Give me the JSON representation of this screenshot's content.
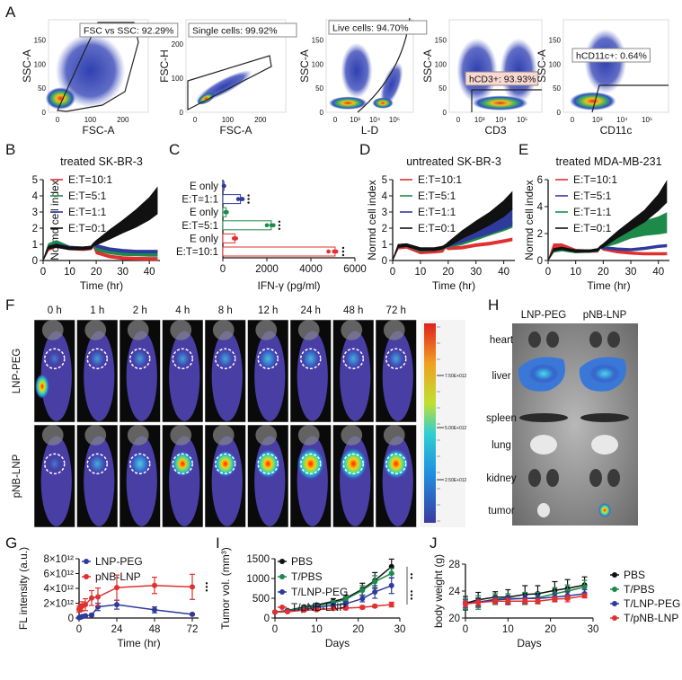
{
  "panel_labels": {
    "A": "A",
    "B": "B",
    "C": "C",
    "D": "D",
    "E": "E",
    "F": "F",
    "G": "G",
    "H": "H",
    "I": "I",
    "J": "J"
  },
  "colors": {
    "red": "#e03030",
    "green": "#1e8a4a",
    "blue": "#2e3a9c",
    "black": "#111111"
  },
  "flow_plots": [
    {
      "gate_label": "FSC vs SSC: 92.29%",
      "xlabel": "FSC-A",
      "ylabel": "SSC-A",
      "xticks": [
        "0",
        "100",
        "200"
      ],
      "yticks": [
        "0",
        "50",
        "100",
        "150"
      ]
    },
    {
      "gate_label": "Single cells: 99.92%",
      "xlabel": "FSC-A",
      "ylabel": "FSC-H",
      "xticks": [
        "0",
        "100",
        "200"
      ],
      "yticks": [
        "0",
        "100",
        "200"
      ]
    },
    {
      "gate_label": "Live cells: 94.70%",
      "xlabel": "L-D",
      "ylabel": "SSC-A",
      "xticks": [
        "0",
        "10³",
        "10⁴",
        "10⁵"
      ],
      "yticks": [
        "0",
        "50",
        "100",
        "150"
      ]
    },
    {
      "gate_label": "hCD3+: 93.93%",
      "xlabel": "CD3",
      "ylabel": "SSC-A",
      "xticks": [
        "0",
        "10³",
        "10⁴",
        "10⁵"
      ],
      "yticks": [
        "0",
        "50",
        "100",
        "150"
      ]
    },
    {
      "gate_label": "hCD11c+: 0.64%",
      "xlabel": "CD11c",
      "ylabel": "SSC-A",
      "xticks": [
        "0",
        "10³",
        "10⁴",
        "10⁵"
      ],
      "yticks": [
        "0",
        "50",
        "100",
        "150"
      ]
    }
  ],
  "chart_data": [
    {
      "id": "B",
      "type": "line",
      "title": "treated SK-BR-3",
      "xlabel": "Time (hr)",
      "ylabel": "Normd cell index",
      "xlim": [
        0,
        44
      ],
      "ylim": [
        0,
        5
      ],
      "xticks": [
        "0",
        "10",
        "20",
        "30",
        "40"
      ],
      "yticks": [
        "0",
        "1",
        "2",
        "3",
        "4",
        "5"
      ],
      "legend": "top-left",
      "x": [
        0,
        2,
        5,
        10,
        15,
        18,
        19,
        20,
        25,
        30,
        35,
        40,
        43
      ],
      "series": [
        {
          "name": "E:T=10:1",
          "color": "#e03030",
          "values": [
            0,
            0.7,
            0.9,
            0.75,
            0.7,
            0.75,
            0.9,
            0.5,
            0.25,
            0.15,
            0.12,
            0.1,
            0.1
          ],
          "spread": [
            0,
            0.05,
            0.05,
            0.05,
            0.05,
            0.05,
            0.05,
            0.05,
            0.05,
            0.05,
            0.05,
            0.05,
            0.05
          ]
        },
        {
          "name": "E:T=5:1",
          "color": "#1e8a4a",
          "values": [
            0,
            0.9,
            1.05,
            0.8,
            0.75,
            0.8,
            0.95,
            0.7,
            0.5,
            0.4,
            0.38,
            0.35,
            0.35
          ],
          "spread": [
            0,
            0.1,
            0.15,
            0.05,
            0.05,
            0.05,
            0.05,
            0.05,
            0.05,
            0.05,
            0.05,
            0.05,
            0.05
          ]
        },
        {
          "name": "E:T=1:1",
          "color": "#2e3a9c",
          "values": [
            0,
            0.8,
            0.95,
            0.8,
            0.75,
            0.8,
            1.0,
            0.9,
            0.7,
            0.6,
            0.55,
            0.55,
            0.55
          ],
          "spread": [
            0,
            0.05,
            0.05,
            0.05,
            0.05,
            0.05,
            0.05,
            0.05,
            0.05,
            0.05,
            0.05,
            0.05,
            0.05
          ]
        },
        {
          "name": "E:T=0:1",
          "color": "#111111",
          "values": [
            0,
            0.8,
            0.9,
            0.75,
            0.75,
            0.8,
            1.0,
            1.1,
            1.6,
            2.1,
            2.6,
            3.2,
            3.7
          ],
          "spread": [
            0,
            0.05,
            0.05,
            0.05,
            0.05,
            0.05,
            0.05,
            0.1,
            0.25,
            0.35,
            0.5,
            0.65,
            0.78
          ]
        }
      ]
    },
    {
      "id": "C",
      "type": "bar",
      "orientation": "horizontal",
      "xlabel": "IFN-γ (pg/ml)",
      "xlim": [
        0,
        6000
      ],
      "xticks": [
        "0",
        "2000",
        "4000",
        "6000"
      ],
      "categories": [
        "E only",
        "E:T=1:1",
        "E only",
        "E:T=5:1",
        "E only",
        "E:T=10:1"
      ],
      "values": [
        50,
        800,
        150,
        2200,
        550,
        5100
      ],
      "points": [
        [
          40,
          60,
          50
        ],
        [
          700,
          850,
          900
        ],
        [
          120,
          150,
          180
        ],
        [
          2000,
          2200,
          2300
        ],
        [
          500,
          550,
          600
        ],
        [
          4800,
          5050,
          5150
        ]
      ],
      "bar_colors": [
        "#2e3a9c",
        "#2e3a9c",
        "#1e8a4a",
        "#1e8a4a",
        "#e03030",
        "#e03030"
      ],
      "significance": [
        "",
        "***",
        "",
        "***",
        "",
        "***"
      ]
    },
    {
      "id": "D",
      "type": "line",
      "title": "untreated SK-BR-3",
      "xlabel": "Time (hr)",
      "ylabel": "Normd cell index",
      "xlim": [
        0,
        44
      ],
      "ylim": [
        0,
        5
      ],
      "xticks": [
        "0",
        "10",
        "20",
        "30",
        "40"
      ],
      "yticks": [
        "0",
        "1",
        "2",
        "3",
        "4",
        "5"
      ],
      "legend": "top-left",
      "x": [
        0,
        2,
        5,
        10,
        15,
        18,
        19,
        20,
        25,
        30,
        35,
        40,
        43
      ],
      "series": [
        {
          "name": "E:T=10:1",
          "color": "#e03030",
          "values": [
            0,
            0.8,
            0.85,
            0.5,
            0.55,
            0.6,
            0.85,
            0.75,
            0.8,
            0.95,
            1.05,
            1.2,
            1.3
          ],
          "spread": [
            0,
            0.05,
            0.05,
            0.05,
            0.05,
            0.05,
            0.05,
            0.05,
            0.05,
            0.05,
            0.05,
            0.05,
            0.05
          ]
        },
        {
          "name": "E:T=5:1",
          "color": "#1e8a4a",
          "values": [
            0,
            0.9,
            0.95,
            0.65,
            0.7,
            0.75,
            0.9,
            0.9,
            1.1,
            1.4,
            1.7,
            2.0,
            2.2
          ],
          "spread": [
            0,
            0.05,
            0.05,
            0.05,
            0.05,
            0.05,
            0.05,
            0.05,
            0.08,
            0.1,
            0.1,
            0.12,
            0.12
          ]
        },
        {
          "name": "E:T=1:1",
          "color": "#2e3a9c",
          "values": [
            0,
            0.9,
            0.95,
            0.7,
            0.7,
            0.8,
            0.9,
            0.95,
            1.3,
            1.7,
            2.0,
            2.4,
            2.7
          ],
          "spread": [
            0,
            0.05,
            0.05,
            0.05,
            0.05,
            0.05,
            0.05,
            0.05,
            0.15,
            0.25,
            0.3,
            0.4,
            0.5
          ]
        },
        {
          "name": "E:T=0:1",
          "color": "#111111",
          "values": [
            0,
            0.9,
            0.95,
            0.7,
            0.7,
            0.8,
            0.9,
            1.0,
            1.6,
            2.1,
            2.6,
            3.2,
            3.7
          ],
          "spread": [
            0,
            0.05,
            0.05,
            0.05,
            0.05,
            0.05,
            0.05,
            0.1,
            0.2,
            0.3,
            0.35,
            0.45,
            0.5
          ]
        }
      ]
    },
    {
      "id": "E",
      "type": "line",
      "title": "treated MDA-MB-231",
      "xlabel": "Time (hr)",
      "ylabel": "Normd cell index",
      "xlim": [
        0,
        44
      ],
      "ylim": [
        0,
        6
      ],
      "xticks": [
        "0",
        "10",
        "20",
        "30",
        "40"
      ],
      "yticks": [
        "0",
        "2",
        "4",
        "6"
      ],
      "legend": "top-left",
      "x": [
        0,
        2,
        5,
        10,
        15,
        18,
        19,
        20,
        25,
        30,
        35,
        40,
        43
      ],
      "series": [
        {
          "name": "E:T=10:1",
          "color": "#e03030",
          "values": [
            0,
            1.0,
            1.0,
            0.75,
            0.7,
            0.7,
            1.0,
            0.85,
            0.65,
            0.55,
            0.5,
            0.5,
            0.5
          ],
          "spread": [
            0,
            0.2,
            0.2,
            0.05,
            0.05,
            0.05,
            0.05,
            0.05,
            0.05,
            0.05,
            0.05,
            0.05,
            0.05
          ]
        },
        {
          "name": "E:T=5:1",
          "color": "#2e3a9c",
          "values": [
            0,
            0.8,
            0.9,
            0.7,
            0.7,
            0.75,
            1.0,
            0.95,
            0.85,
            0.8,
            0.9,
            1.05,
            1.1
          ],
          "spread": [
            0,
            0.05,
            0.05,
            0.05,
            0.05,
            0.05,
            0.05,
            0.05,
            0.05,
            0.05,
            0.05,
            0.05,
            0.05
          ]
        },
        {
          "name": "E:T=1:1",
          "color": "#1e8a4a",
          "values": [
            0,
            0.7,
            0.8,
            0.65,
            0.7,
            0.75,
            1.0,
            1.1,
            1.6,
            2.1,
            2.4,
            2.6,
            2.8
          ],
          "spread": [
            0,
            0.05,
            0.05,
            0.05,
            0.05,
            0.05,
            0.05,
            0.1,
            0.3,
            0.4,
            0.5,
            0.6,
            0.7
          ]
        },
        {
          "name": "E:T=0:1",
          "color": "#111111",
          "values": [
            0,
            0.8,
            0.9,
            0.7,
            0.7,
            0.8,
            1.0,
            1.1,
            1.9,
            2.6,
            3.3,
            4.3,
            5.1
          ],
          "spread": [
            0,
            0.05,
            0.05,
            0.05,
            0.05,
            0.05,
            0.05,
            0.1,
            0.2,
            0.3,
            0.4,
            0.55,
            0.75
          ]
        }
      ]
    },
    {
      "id": "G",
      "type": "line",
      "xlabel": "Time (hr)",
      "ylabel": "FL intensity (a.u.)",
      "xlim": [
        0,
        76
      ],
      "ylim": [
        0,
        8
      ],
      "xticks": [
        "0",
        "24",
        "48",
        "72"
      ],
      "yticks": [
        "0",
        "2×10¹²",
        "4×10¹²",
        "6×10¹²",
        "8×10¹²"
      ],
      "legend": "top-left",
      "x": [
        0,
        1,
        2,
        4,
        8,
        12,
        24,
        48,
        72
      ],
      "series": [
        {
          "name": "LNP-PEG",
          "color": "#2e3a9c",
          "values": [
            0.05,
            0.1,
            0.2,
            0.3,
            0.4,
            1.5,
            1.8,
            1.1,
            0.5
          ],
          "errors": [
            0.05,
            0.1,
            0.1,
            0.1,
            0.15,
            0.5,
            0.6,
            0.4,
            0.1
          ]
        },
        {
          "name": "pNB-LNP",
          "color": "#e03030",
          "values": [
            1.2,
            1.4,
            1.6,
            1.8,
            2.7,
            2.85,
            4.1,
            4.4,
            4.2
          ],
          "errors": [
            0.4,
            0.5,
            0.6,
            0.8,
            1.0,
            1.2,
            1.7,
            1.1,
            1.7
          ]
        }
      ],
      "significance": "***"
    },
    {
      "id": "I",
      "type": "line",
      "xlabel": "Days",
      "ylabel": "Tumor vol. (mm³)",
      "xlim": [
        0,
        30
      ],
      "ylim": [
        0,
        1500
      ],
      "xticks": [
        "0",
        "10",
        "20",
        "30"
      ],
      "yticks": [
        "0",
        "500",
        "1000",
        "1500"
      ],
      "legend": "top-left",
      "x": [
        0,
        3,
        7,
        10,
        14,
        17,
        21,
        24,
        28
      ],
      "series": [
        {
          "name": "PBS",
          "color": "#111111",
          "values": [
            150,
            190,
            280,
            330,
            420,
            500,
            730,
            950,
            1300
          ],
          "errors": [
            20,
            25,
            35,
            40,
            70,
            80,
            150,
            200,
            190
          ]
        },
        {
          "name": "T/PBS",
          "color": "#1e8a4a",
          "values": [
            150,
            180,
            260,
            310,
            380,
            470,
            700,
            920,
            1130
          ],
          "errors": [
            20,
            25,
            35,
            40,
            60,
            70,
            120,
            150,
            120
          ]
        },
        {
          "name": "T/LNP-PEG",
          "color": "#2e3a9c",
          "values": [
            150,
            170,
            220,
            270,
            320,
            360,
            490,
            660,
            820
          ],
          "errors": [
            20,
            20,
            30,
            35,
            50,
            60,
            80,
            160,
            200
          ]
        },
        {
          "name": "T/pNB-LNP",
          "color": "#e03030",
          "values": [
            150,
            160,
            200,
            210,
            240,
            250,
            270,
            300,
            340
          ],
          "errors": [
            20,
            20,
            30,
            30,
            35,
            40,
            40,
            30,
            60
          ]
        }
      ],
      "significance": [
        "**",
        "***"
      ]
    },
    {
      "id": "J",
      "type": "line",
      "xlabel": "Days",
      "ylabel": "body weight (g)",
      "xlim": [
        0,
        30
      ],
      "ylim": [
        20,
        28
      ],
      "xticks": [
        "0",
        "10",
        "20",
        "30"
      ],
      "yticks": [
        "20",
        "24",
        "28"
      ],
      "legend": "right",
      "x": [
        0,
        3,
        7,
        10,
        14,
        17,
        21,
        24,
        28
      ],
      "series": [
        {
          "name": "PBS",
          "color": "#111111",
          "values": [
            22.2,
            22.7,
            23.1,
            23.1,
            23.5,
            23.6,
            24.1,
            24.4,
            24.9
          ],
          "errors": [
            1.0,
            1.1,
            0.8,
            1.1,
            1.3,
            1.2,
            1.3,
            1.3,
            1.2
          ]
        },
        {
          "name": "T/PBS",
          "color": "#1e8a4a",
          "values": [
            22.1,
            22.3,
            22.8,
            22.9,
            22.9,
            23.0,
            23.6,
            24.0,
            24.6
          ],
          "errors": [
            0.8,
            1.0,
            0.8,
            0.7,
            0.9,
            0.8,
            0.9,
            0.9,
            1.0
          ]
        },
        {
          "name": "T/LNP-PEG",
          "color": "#2e3a9c",
          "values": [
            22.1,
            22.4,
            22.7,
            22.8,
            22.9,
            22.9,
            23.1,
            23.3,
            23.6
          ],
          "errors": [
            0.6,
            0.6,
            0.5,
            0.5,
            0.5,
            0.5,
            0.6,
            0.6,
            0.6
          ]
        },
        {
          "name": "T/pNB-LNP",
          "color": "#e03030",
          "values": [
            22.1,
            22.3,
            22.5,
            22.5,
            22.5,
            22.5,
            22.8,
            22.9,
            23.3
          ],
          "errors": [
            0.4,
            0.4,
            0.4,
            0.4,
            0.4,
            0.4,
            0.4,
            0.5,
            0.3
          ]
        }
      ]
    }
  ],
  "imaging": {
    "timepoints": [
      "0 h",
      "1 h",
      "2 h",
      "4 h",
      "8 h",
      "12 h",
      "24 h",
      "48 h",
      "72 h"
    ],
    "rows": [
      {
        "label": "LNP-PEG",
        "signal": [
          0.1,
          0.3,
          0.3,
          0.3,
          0.35,
          0.5,
          0.45,
          0.4,
          0.35
        ]
      },
      {
        "label": "pNB-LNP",
        "signal": [
          0.1,
          0.4,
          0.6,
          0.65,
          0.7,
          0.8,
          0.95,
          0.95,
          0.85
        ]
      }
    ],
    "colorbar_ticks": [
      "7.50E+012",
      "5.00E+012",
      "2.50E+012"
    ]
  },
  "organs": {
    "columns": [
      "LNP-PEG",
      "pNB-LNP"
    ],
    "rows": [
      "heart",
      "liver",
      "spleen",
      "lung",
      "kidney",
      "tumor"
    ],
    "tumor_signal": [
      0.05,
      0.9
    ],
    "liver_signal": [
      0.6,
      0.55
    ]
  }
}
